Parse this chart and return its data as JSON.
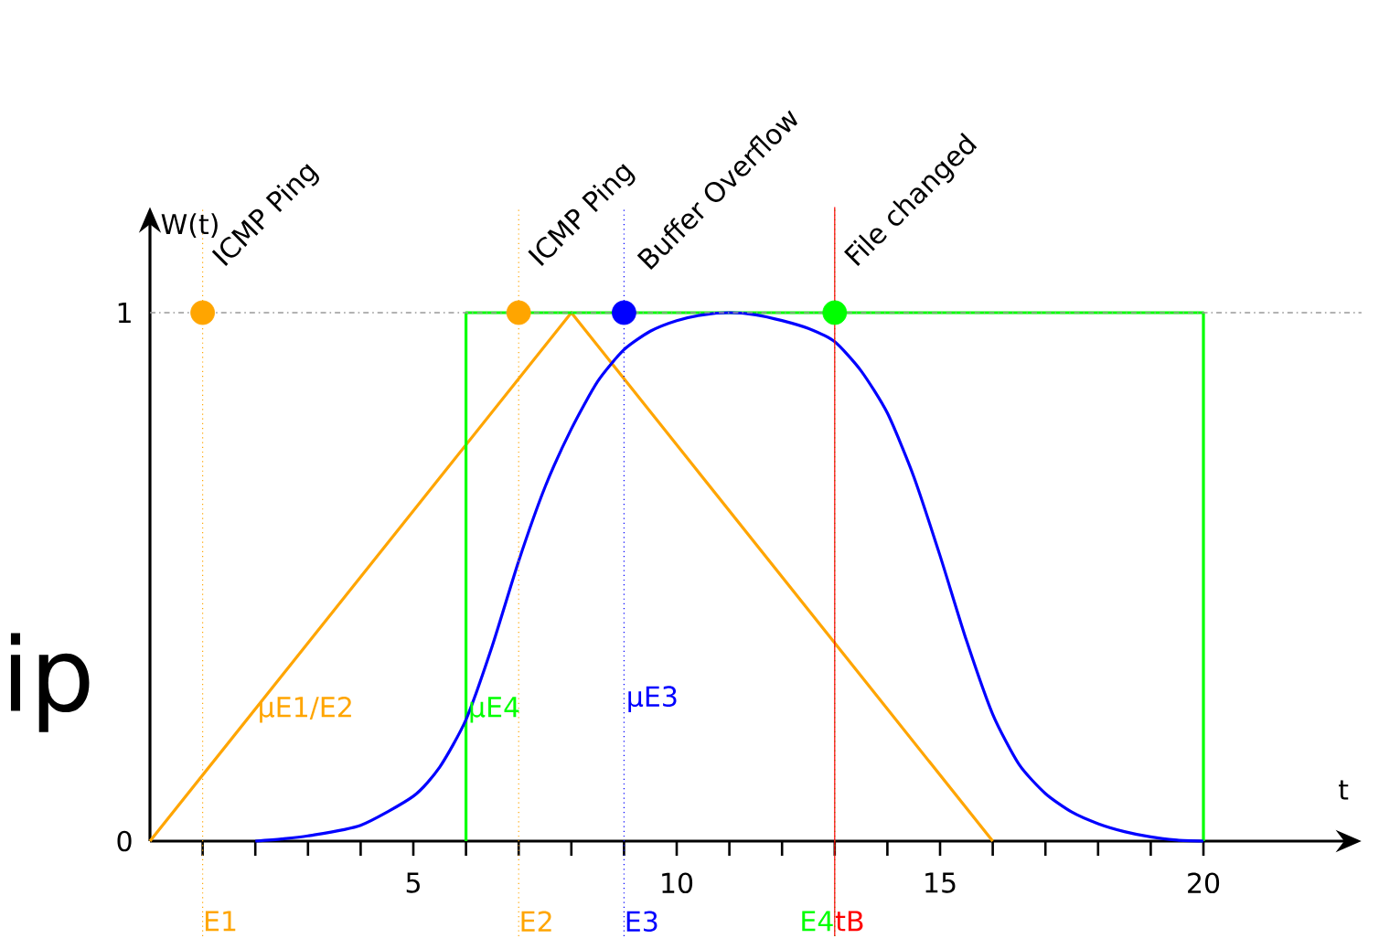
{
  "chart_data": {
    "type": "line",
    "xlabel": "t",
    "ylabel": "W(t)",
    "xlim": [
      0,
      23
    ],
    "ylim": [
      0,
      1.2
    ],
    "xticks": [
      {
        "value": 1,
        "label": null
      },
      {
        "value": 2,
        "label": null
      },
      {
        "value": 3,
        "label": null
      },
      {
        "value": 4,
        "label": null
      },
      5,
      {
        "value": 6,
        "label": null
      },
      {
        "value": 7,
        "label": null
      },
      {
        "value": 8,
        "label": null
      },
      {
        "value": 9,
        "label": null
      },
      10,
      {
        "value": 11,
        "label": null
      },
      {
        "value": 12,
        "label": null
      },
      {
        "value": 13,
        "label": null
      },
      {
        "value": 14,
        "label": null
      },
      15,
      {
        "value": 16,
        "label": null
      },
      {
        "value": 17,
        "label": null
      },
      {
        "value": 18,
        "label": null
      },
      {
        "value": 19,
        "label": null
      },
      20
    ],
    "yticks": [
      0,
      1
    ],
    "series": [
      {
        "color": "#ffa500",
        "x": [
          0,
          8,
          16
        ],
        "values": [
          0,
          1,
          0
        ]
      },
      {
        "color": "#00ff00",
        "x": [
          6,
          6,
          20,
          20
        ],
        "values": [
          0,
          1,
          1,
          0
        ]
      },
      {
        "color": "#0000ff",
        "x": [
          2,
          2.5,
          3,
          4,
          5,
          5.5,
          6,
          6.5,
          7,
          7.5,
          8,
          8.5,
          9,
          9.5,
          10,
          10.5,
          11,
          11.5,
          12,
          12.5,
          13,
          13.5,
          14,
          14.5,
          15,
          15.5,
          16,
          16.5,
          17,
          17.5,
          18,
          18.5,
          19,
          19.5,
          20
        ],
        "values": [
          0,
          0.004,
          0.01,
          0.03,
          0.085,
          0.14,
          0.23,
          0.37,
          0.53,
          0.67,
          0.78,
          0.87,
          0.93,
          0.965,
          0.985,
          0.996,
          1,
          0.996,
          0.985,
          0.97,
          0.945,
          0.89,
          0.81,
          0.69,
          0.54,
          0.38,
          0.24,
          0.145,
          0.09,
          0.055,
          0.033,
          0.018,
          0.008,
          0.002,
          0
        ]
      },
      {
        "type": "scatter",
        "marker": "circle",
        "x": [
          1,
          7,
          9,
          13
        ],
        "values": [
          1,
          1,
          1,
          1
        ],
        "colors": [
          "#ffa500",
          "#ffa500",
          "#0000ff",
          "#00ff00"
        ]
      }
    ],
    "ref_lines": [
      {
        "axis": "y",
        "value": 1,
        "color": "#999999",
        "line_style": "dashdot"
      },
      {
        "axis": "x",
        "value": 1,
        "label": "E1",
        "color": "#ffa500",
        "line_style": "dotted"
      },
      {
        "axis": "x",
        "value": 7,
        "label": "E2",
        "color": "#ffa500",
        "line_style": "dotted"
      },
      {
        "axis": "x",
        "value": 9,
        "label": "E3",
        "color": "#0000ff",
        "line_style": "dotted"
      },
      {
        "axis": "x",
        "value": 13,
        "label": "E4",
        "color": "#00ff00",
        "line_style": "dotted"
      },
      {
        "axis": "x",
        "value": 13,
        "label": "tB",
        "color": "#ff0000",
        "line_style": "solid"
      }
    ],
    "annotations": [
      {
        "text": "ICMP Ping",
        "x": 1,
        "y": 1
      },
      {
        "text": "ICMP Ping",
        "x": 7,
        "y": 1
      },
      {
        "text": "Buffer Overflow",
        "x": 9,
        "y": 1
      },
      {
        "text": "File changed",
        "x": 13,
        "y": 1
      },
      {
        "text": "μE1/E2",
        "x": 2,
        "y": 0.22
      },
      {
        "text": "μE4",
        "x": 6,
        "y": 0.22
      },
      {
        "text": "μE3",
        "x": 9,
        "y": 0.24
      },
      "ip"
    ],
    "grid": false
  }
}
